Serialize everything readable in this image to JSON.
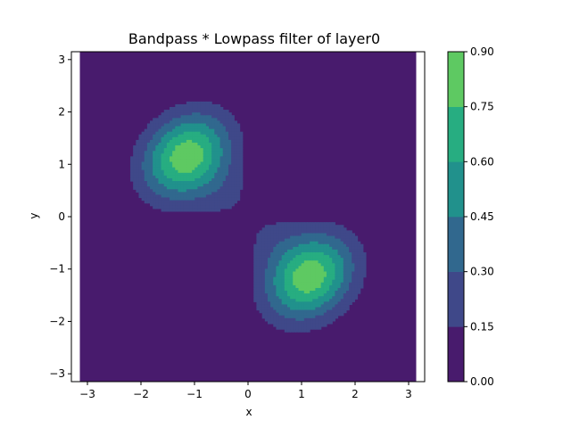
{
  "chart_data": {
    "type": "heatmap",
    "subtype": "filled-contour",
    "title": "Bandpass * Lowpass filter of layer0",
    "xlabel": "x",
    "ylabel": "y",
    "xlim": [
      -3.3,
      3.3
    ],
    "ylim": [
      -3.15,
      3.15
    ],
    "data_extent": {
      "x": [
        -3.14159,
        3.14159
      ],
      "y": [
        -3.14159,
        3.14159
      ]
    },
    "xticks": [
      -3,
      -2,
      -1,
      0,
      1,
      2,
      3
    ],
    "yticks": [
      -3,
      -2,
      -1,
      0,
      1,
      2,
      3
    ],
    "xtick_labels": [
      "−3",
      "−2",
      "−1",
      "0",
      "1",
      "2",
      "3"
    ],
    "ytick_labels": [
      "−3",
      "−2",
      "−1",
      "0",
      "1",
      "2",
      "3"
    ],
    "levels": [
      0.0,
      0.15,
      0.3,
      0.45,
      0.6,
      0.75,
      0.9
    ],
    "level_labels": [
      "0.00",
      "0.15",
      "0.30",
      "0.45",
      "0.60",
      "0.75",
      "0.90"
    ],
    "level_colors": [
      "#481b6d",
      "#3f4889",
      "#31688e",
      "#21918c",
      "#27ad81",
      "#5ec962",
      "#cae11f"
    ],
    "peaks": [
      {
        "x": -1.15,
        "y": 1.15,
        "value": 0.86,
        "elongation_axis": [
          1,
          1
        ]
      },
      {
        "x": 1.15,
        "y": -1.15,
        "value": 0.86,
        "elongation_axis": [
          1,
          1
        ]
      }
    ],
    "grid": false,
    "colorbar": "right"
  }
}
